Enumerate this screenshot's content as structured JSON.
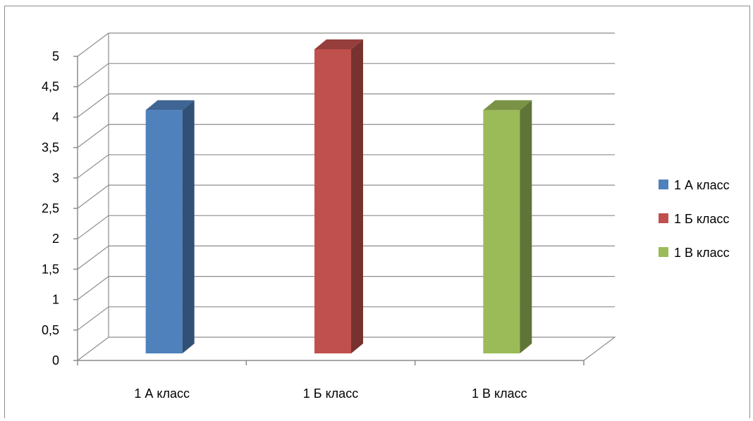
{
  "chart_data": {
    "type": "bar",
    "categories": [
      "1 А класс",
      "1 Б класс",
      "1 В класс"
    ],
    "series": [
      {
        "name": "1 А класс",
        "values": [
          4,
          null,
          null
        ],
        "color": "#4F81BD"
      },
      {
        "name": "1 Б класс",
        "values": [
          null,
          5,
          null
        ],
        "color": "#C0504D"
      },
      {
        "name": "1 В класс",
        "values": [
          null,
          null,
          4
        ],
        "color": "#9BBB59"
      }
    ],
    "yticks": [
      "0",
      "0,5",
      "1",
      "1,5",
      "2",
      "2,5",
      "3",
      "3,5",
      "4",
      "4,5",
      "5"
    ],
    "ylim": [
      0,
      5
    ],
    "grid": true,
    "legend_position": "right",
    "style": "3d-column"
  }
}
